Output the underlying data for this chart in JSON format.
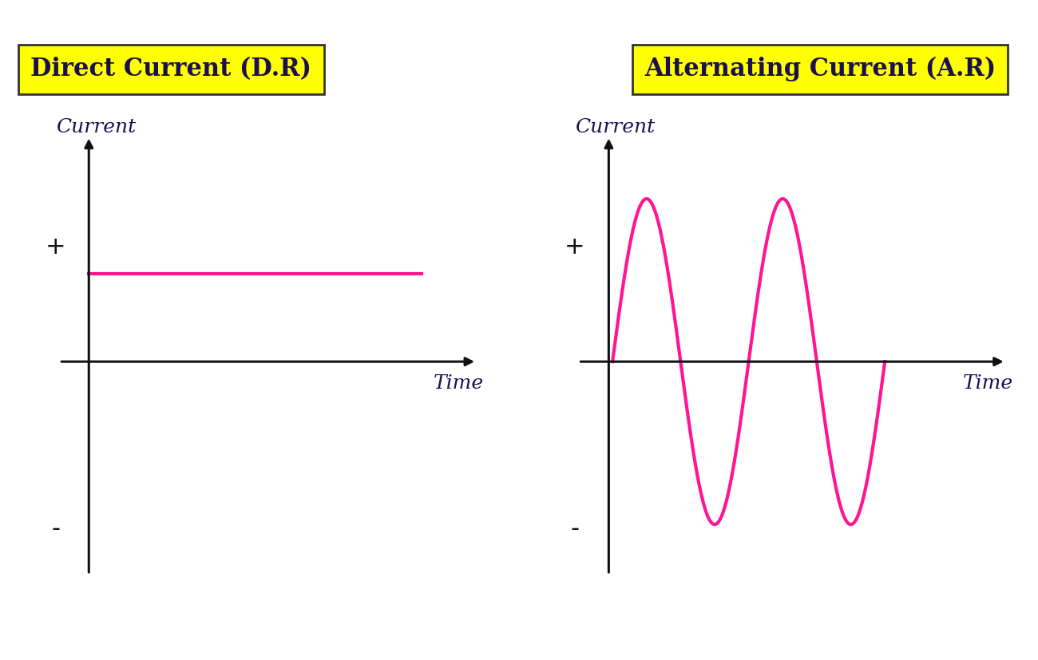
{
  "bg_color": "#ffffff",
  "bottom_bar_color": "#0d0d0d",
  "title_dc": "Direct Current (D.R)",
  "title_ac": "Alternating Current (A.R)",
  "title_bg": "#ffff00",
  "title_border": "#333333",
  "title_fontsize": 22,
  "title_font_color": "#1a1050",
  "axis_color": "#111111",
  "axis_label_color": "#1a1050",
  "axis_label_fontsize": 18,
  "plus_minus_fontsize": 22,
  "curve_color": "#ff1493",
  "curve_lw": 3.0,
  "dc_level": 0.42,
  "ac_amplitude": 0.78,
  "ac_num_cycles": 2.0,
  "time_label": "Time",
  "current_label": "Current",
  "plus_label": "+",
  "minus_label": "-",
  "bottom_bar_height": 0.085
}
